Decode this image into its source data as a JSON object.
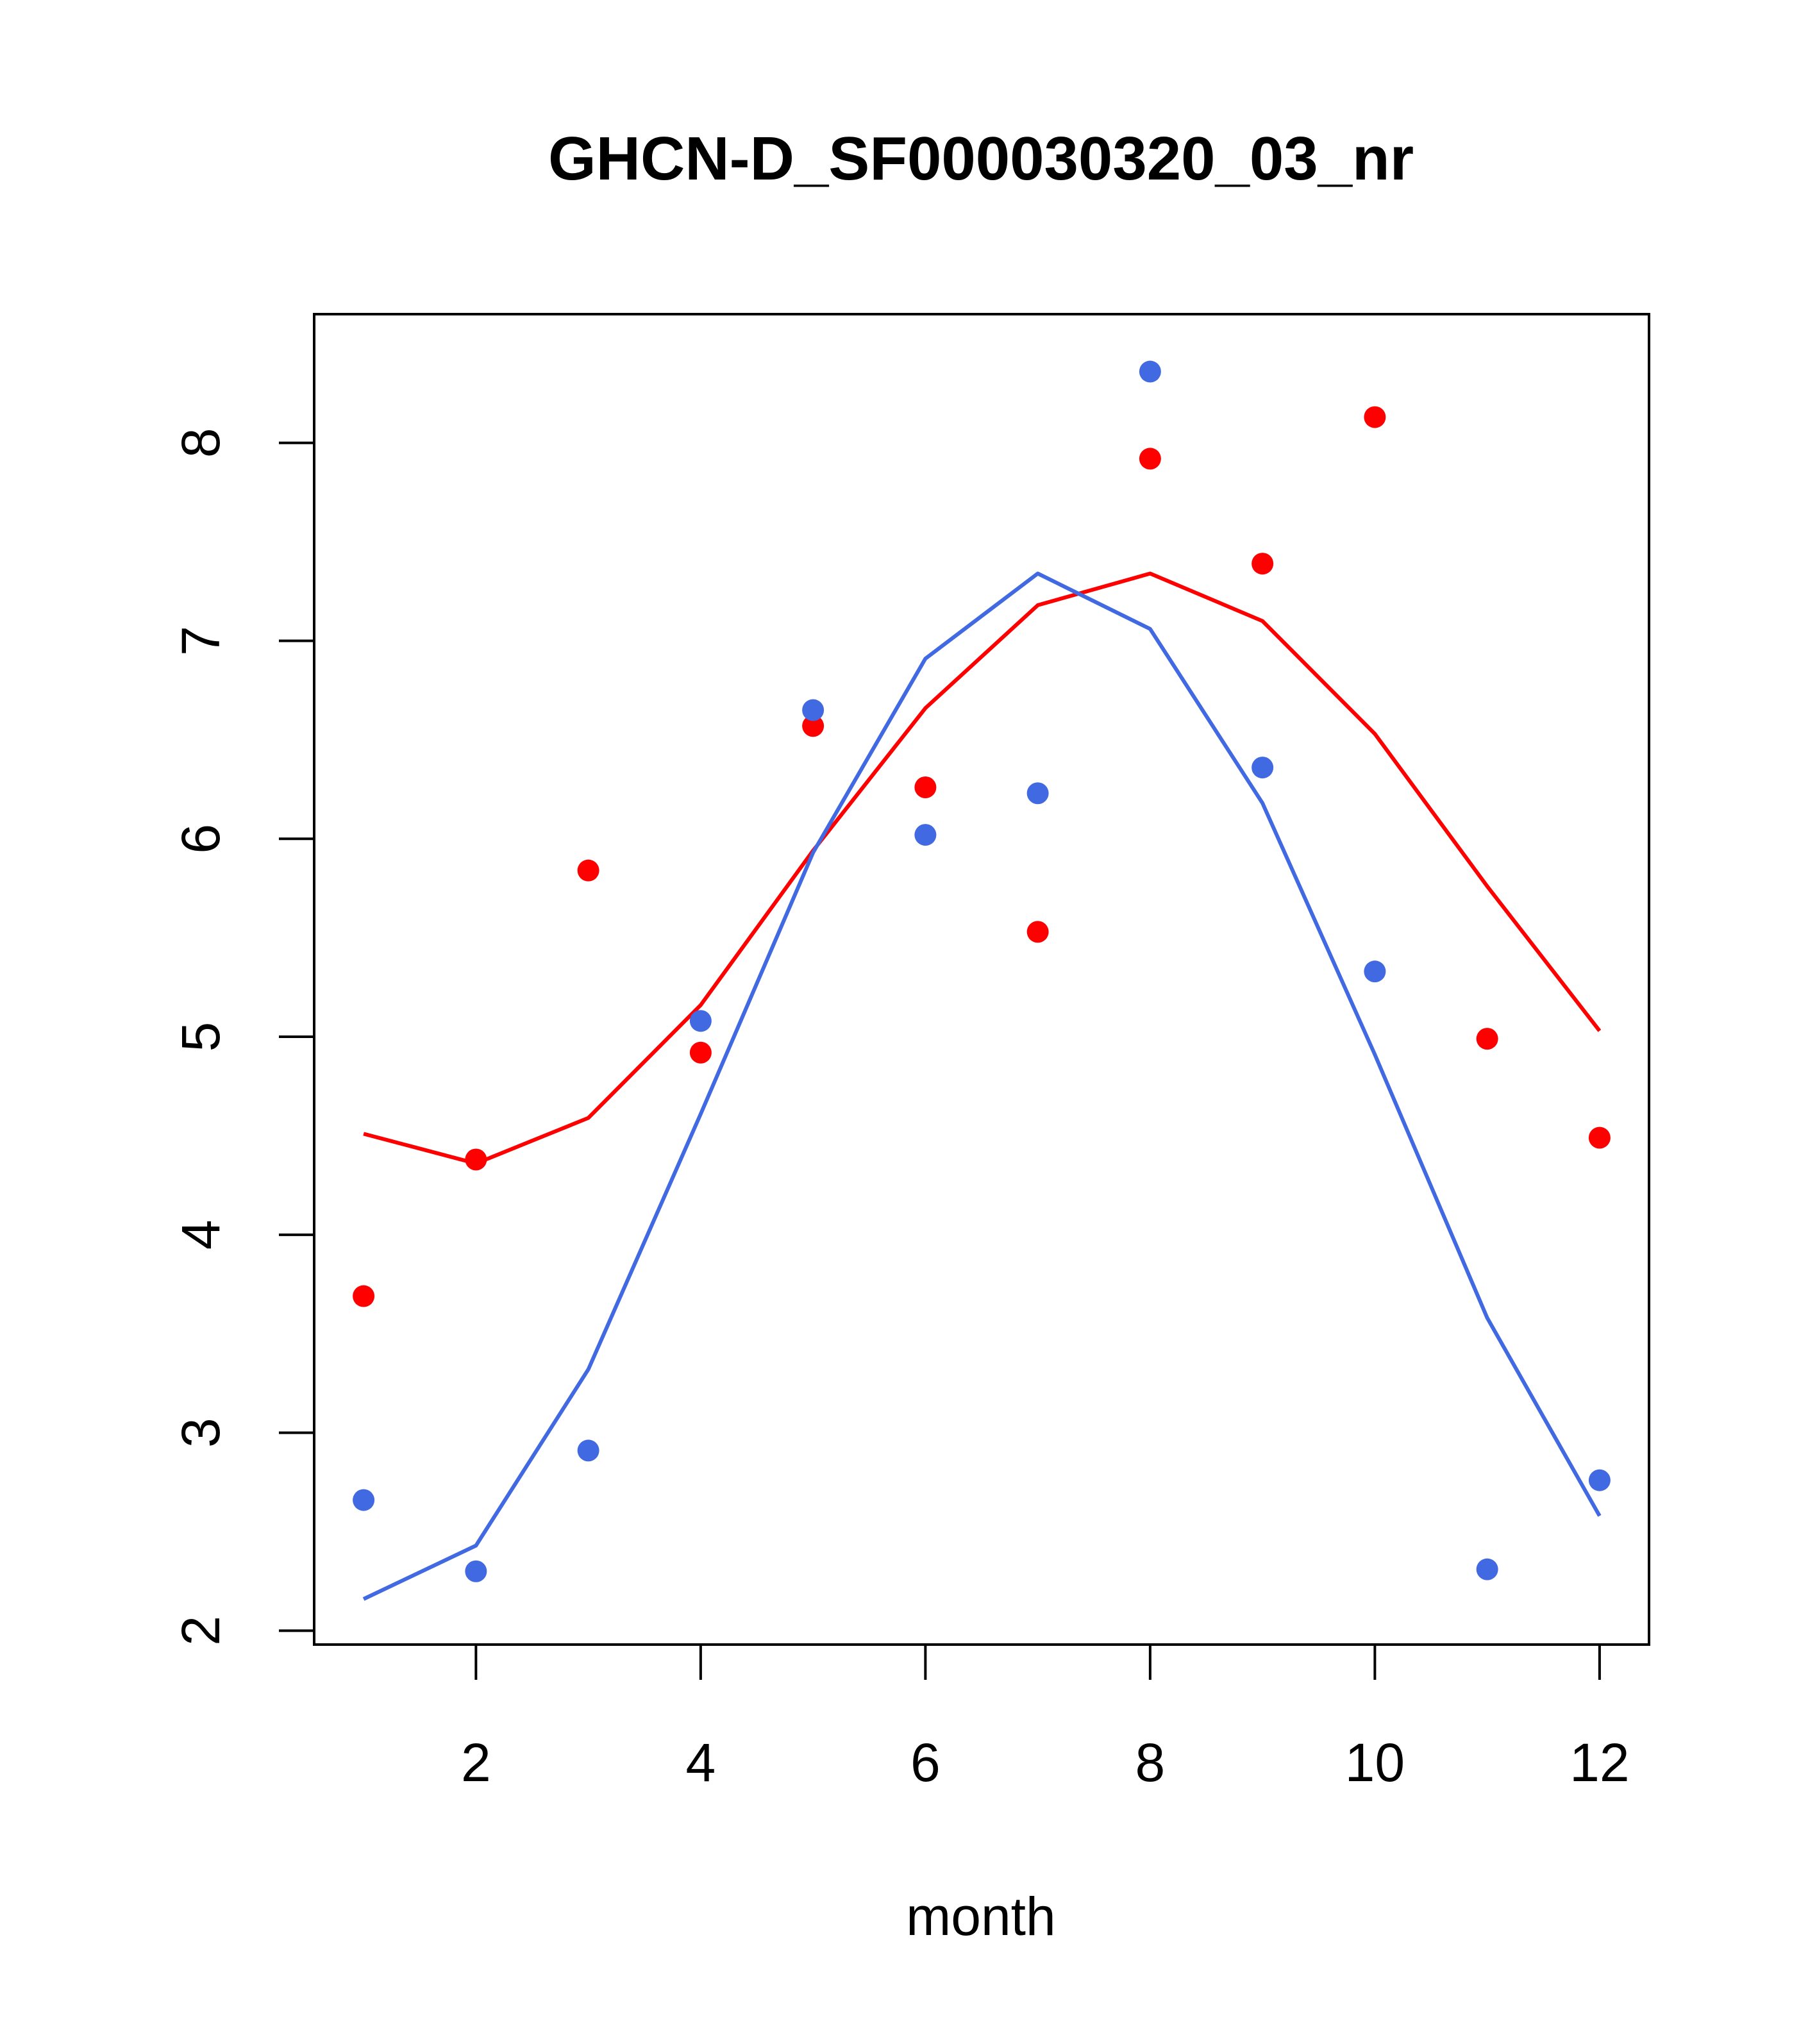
{
  "chart_data": {
    "type": "line",
    "title": "GHCN-D_SF000030320_03_nr",
    "xlabel": "month",
    "ylabel": "",
    "xlim": [
      0.56,
      12.44
    ],
    "ylim": [
      1.93,
      8.65
    ],
    "x_ticks": [
      2,
      4,
      6,
      8,
      10,
      12
    ],
    "y_ticks": [
      2,
      3,
      4,
      5,
      6,
      7,
      8
    ],
    "grid": false,
    "legend": "none",
    "series": [
      {
        "name": "red observations",
        "kind": "points",
        "color": "#ff0000",
        "x": [
          1,
          2,
          3,
          4,
          5,
          6,
          7,
          8,
          9,
          10,
          11,
          12
        ],
        "values": [
          3.69,
          4.38,
          5.84,
          4.92,
          6.57,
          6.26,
          5.53,
          7.92,
          7.39,
          8.13,
          4.99,
          4.49
        ]
      },
      {
        "name": "blue observations",
        "kind": "points",
        "color": "#4169e1",
        "x": [
          1,
          2,
          3,
          4,
          5,
          6,
          7,
          8,
          9,
          10,
          11,
          12
        ],
        "values": [
          2.66,
          2.3,
          2.91,
          5.08,
          6.65,
          6.02,
          6.23,
          8.36,
          6.36,
          5.33,
          2.31,
          2.76
        ]
      },
      {
        "name": "red fit",
        "kind": "line",
        "color": "#ff0000",
        "x": [
          1,
          2,
          3,
          4,
          5,
          6,
          7,
          8,
          9,
          10,
          11,
          12
        ],
        "values": [
          4.51,
          4.36,
          4.59,
          5.16,
          5.94,
          6.66,
          7.18,
          7.34,
          7.1,
          6.53,
          5.76,
          5.03
        ]
      },
      {
        "name": "blue fit",
        "kind": "line",
        "color": "#4169e1",
        "x": [
          1,
          2,
          3,
          4,
          5,
          6,
          7,
          8,
          9,
          10,
          11,
          12
        ],
        "values": [
          2.16,
          2.43,
          3.32,
          4.61,
          5.93,
          6.91,
          7.34,
          7.06,
          6.18,
          4.91,
          3.58,
          2.58
        ]
      }
    ]
  }
}
